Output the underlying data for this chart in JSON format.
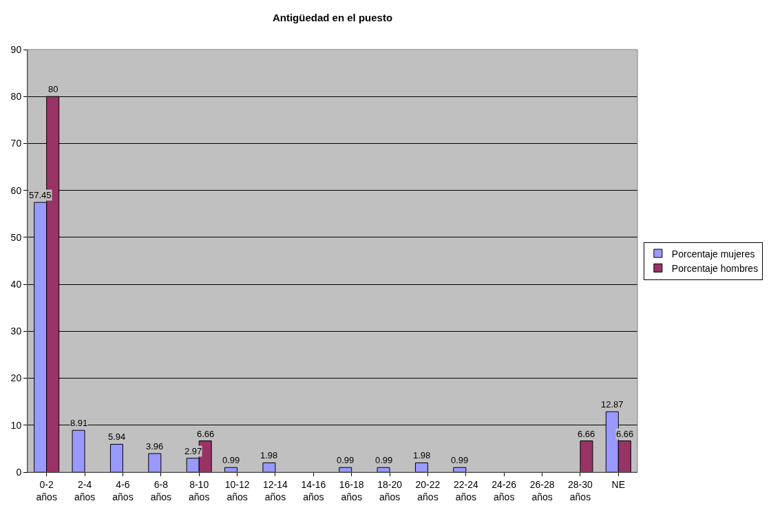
{
  "chart_data": {
    "type": "bar",
    "title": "Antigüedad en el puesto",
    "categories": [
      "0-2 años",
      "2-4 años",
      "4-6 años",
      "6-8 años",
      "8-10 años",
      "10-12 años",
      "12-14 años",
      "14-16 años",
      "16-18 años",
      "18-20 años",
      "20-22 años",
      "22-24 años",
      "24-26 años",
      "26-28 años",
      "28-30 años",
      "NE"
    ],
    "series": [
      {
        "name": "Porcentaje mujeres",
        "color": "#9999ff",
        "values": [
          57.45,
          8.91,
          5.94,
          3.96,
          2.97,
          0.99,
          1.98,
          null,
          0.99,
          0.99,
          1.98,
          0.99,
          null,
          null,
          null,
          12.87
        ]
      },
      {
        "name": "Porcentaje hombres",
        "color": "#993366",
        "values": [
          80,
          null,
          null,
          null,
          6.66,
          null,
          null,
          null,
          null,
          null,
          null,
          null,
          null,
          null,
          6.66,
          6.66
        ]
      }
    ],
    "ylim": [
      0,
      90
    ],
    "yticks": [
      0,
      10,
      20,
      30,
      40,
      50,
      60,
      70,
      80,
      90
    ],
    "grid": "y",
    "legend": "right",
    "data_labels": true
  }
}
